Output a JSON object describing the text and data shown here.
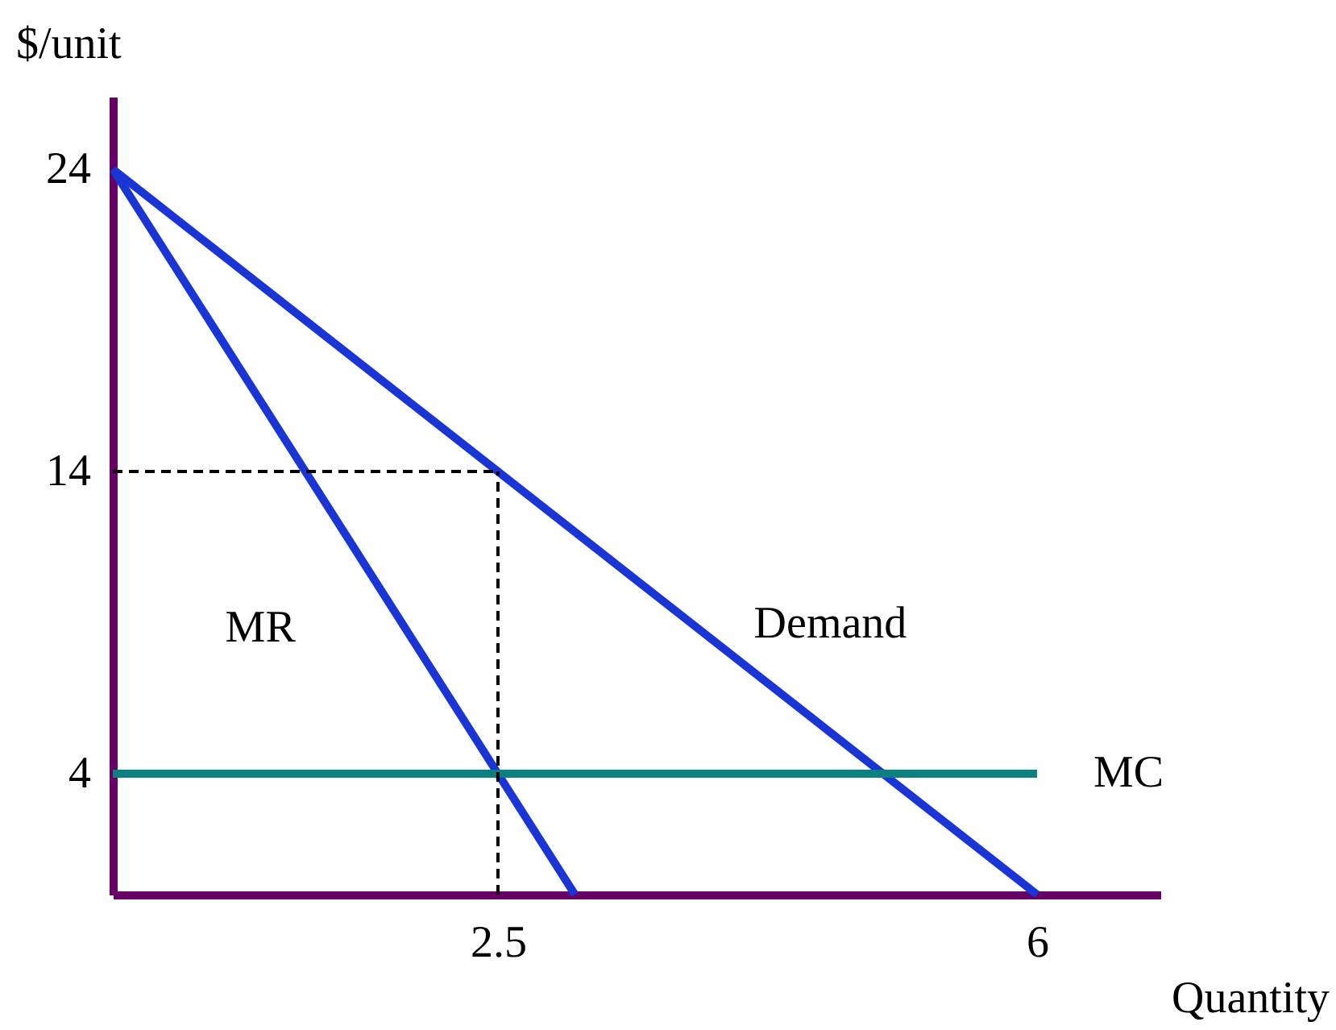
{
  "chart_data": {
    "type": "line",
    "xlabel": "Quantity",
    "ylabel": "$/unit",
    "xlim": [
      0,
      6.8
    ],
    "ylim": [
      0,
      26.4
    ],
    "xticks": [
      2.5,
      6
    ],
    "yticks": [
      4,
      14,
      24
    ],
    "grid": false,
    "marker": "none",
    "series": [
      {
        "name": "Demand",
        "color": "#1a35d6",
        "x": [
          0,
          6
        ],
        "values": [
          24,
          0
        ],
        "line_style": "solid"
      },
      {
        "name": "MR",
        "color": "#1a35d6",
        "x": [
          0,
          3
        ],
        "values": [
          24,
          0
        ],
        "line_style": "solid"
      },
      {
        "name": "MC",
        "color": "#0a8080",
        "x": [
          0,
          6
        ],
        "values": [
          4,
          4
        ],
        "line_style": "solid"
      },
      {
        "color": "#000000",
        "x": [
          0,
          2.5
        ],
        "values": [
          14,
          14
        ],
        "line_style": "dashed"
      },
      {
        "color": "#000000",
        "x": [
          2.5,
          2.5
        ],
        "values": [
          0,
          14
        ],
        "line_style": "dashed"
      }
    ]
  }
}
